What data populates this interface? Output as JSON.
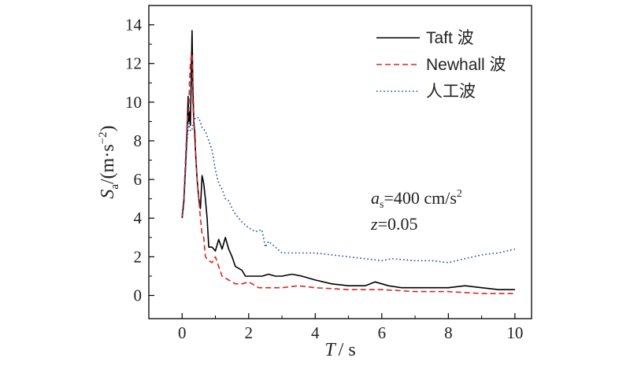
{
  "chart_data": {
    "type": "line",
    "xlabel": {
      "var": "T",
      "unit": "/ s"
    },
    "ylabel": {
      "var": "S",
      "sub": "a",
      "unit": "/(m·s",
      "sup": "−2",
      "close": ")"
    },
    "xlim": [
      -1,
      10.5
    ],
    "ylim": [
      -1.2,
      15
    ],
    "xticks": [
      0,
      2,
      4,
      6,
      8,
      10
    ],
    "yticks": [
      0,
      2,
      4,
      6,
      8,
      10,
      12,
      14
    ],
    "legend_position": "top-right",
    "annotations": {
      "line1": {
        "var": "a",
        "sub": "s",
        "rest": "=400 cm/s",
        "sup": "2"
      },
      "line2": {
        "var": "z",
        "rest": "=0.05"
      }
    },
    "series": [
      {
        "name": "Taft 波",
        "color": "#000000",
        "style": "solid",
        "x": [
          0,
          0.05,
          0.1,
          0.15,
          0.18,
          0.2,
          0.22,
          0.25,
          0.28,
          0.3,
          0.32,
          0.35,
          0.38,
          0.4,
          0.45,
          0.5,
          0.55,
          0.6,
          0.65,
          0.7,
          0.75,
          0.8,
          0.9,
          1.0,
          1.1,
          1.2,
          1.3,
          1.4,
          1.5,
          1.6,
          1.7,
          1.8,
          1.9,
          2.0,
          2.2,
          2.4,
          2.6,
          2.8,
          3.0,
          3.3,
          3.6,
          4.0,
          4.5,
          5.0,
          5.5,
          5.8,
          6.2,
          6.6,
          7.0,
          7.5,
          8.0,
          8.5,
          9.0,
          9.5,
          10.0
        ],
        "y": [
          4.0,
          4.8,
          6.5,
          8.5,
          10.3,
          9.0,
          9.5,
          8.8,
          12.0,
          13.7,
          11.0,
          9.0,
          8.5,
          7.5,
          6.0,
          5.0,
          4.5,
          6.2,
          5.8,
          5.0,
          4.0,
          2.5,
          2.5,
          2.3,
          2.9,
          2.4,
          3.0,
          2.4,
          2.0,
          1.5,
          1.4,
          1.3,
          1.0,
          1.0,
          1.0,
          1.0,
          1.1,
          1.0,
          1.0,
          1.1,
          1.0,
          0.8,
          0.6,
          0.5,
          0.5,
          0.7,
          0.5,
          0.4,
          0.4,
          0.4,
          0.4,
          0.5,
          0.4,
          0.3,
          0.3
        ]
      },
      {
        "name": "Newhall 波",
        "color": "#d62728",
        "style": "dashed",
        "x": [
          0,
          0.05,
          0.1,
          0.15,
          0.2,
          0.22,
          0.25,
          0.28,
          0.3,
          0.32,
          0.35,
          0.38,
          0.4,
          0.45,
          0.5,
          0.55,
          0.6,
          0.65,
          0.7,
          0.8,
          0.9,
          1.0,
          1.1,
          1.2,
          1.4,
          1.6,
          1.8,
          2.0,
          2.3,
          2.6,
          3.0,
          3.5,
          4.0,
          5.0,
          6.0,
          7.0,
          8.0,
          9.0,
          10.0
        ],
        "y": [
          4.1,
          5.0,
          7.0,
          9.0,
          9.5,
          11.0,
          12.0,
          12.5,
          12.4,
          10.0,
          9.0,
          8.0,
          7.5,
          6.0,
          5.0,
          4.0,
          3.2,
          3.0,
          2.0,
          1.8,
          1.7,
          2.0,
          1.5,
          1.0,
          0.8,
          0.6,
          0.6,
          0.7,
          0.4,
          0.4,
          0.4,
          0.5,
          0.4,
          0.3,
          0.3,
          0.2,
          0.2,
          0.1,
          0.1
        ]
      },
      {
        "name": "人工波",
        "color": "#1f4e9e",
        "style": "dotted",
        "x": [
          0,
          0.05,
          0.1,
          0.15,
          0.2,
          0.25,
          0.3,
          0.35,
          0.4,
          0.5,
          0.6,
          0.7,
          0.8,
          0.9,
          1.0,
          1.1,
          1.2,
          1.3,
          1.4,
          1.5,
          1.6,
          1.8,
          2.0,
          2.2,
          2.4,
          2.5,
          2.6,
          2.8,
          3.0,
          3.5,
          4.0,
          5.0,
          6.0,
          6.3,
          7.0,
          7.5,
          8.0,
          8.5,
          9.0,
          9.5,
          10.0
        ],
        "y": [
          4.2,
          5.0,
          6.5,
          8.0,
          9.0,
          8.5,
          8.6,
          9.0,
          9.2,
          9.2,
          8.7,
          8.5,
          8.0,
          7.5,
          6.5,
          5.8,
          5.5,
          5.0,
          4.9,
          4.5,
          4.2,
          3.8,
          3.5,
          3.3,
          3.4,
          2.5,
          2.8,
          2.5,
          2.2,
          2.2,
          2.2,
          2.0,
          1.8,
          1.9,
          1.8,
          1.8,
          1.7,
          1.9,
          2.1,
          2.2,
          2.4
        ]
      }
    ]
  }
}
